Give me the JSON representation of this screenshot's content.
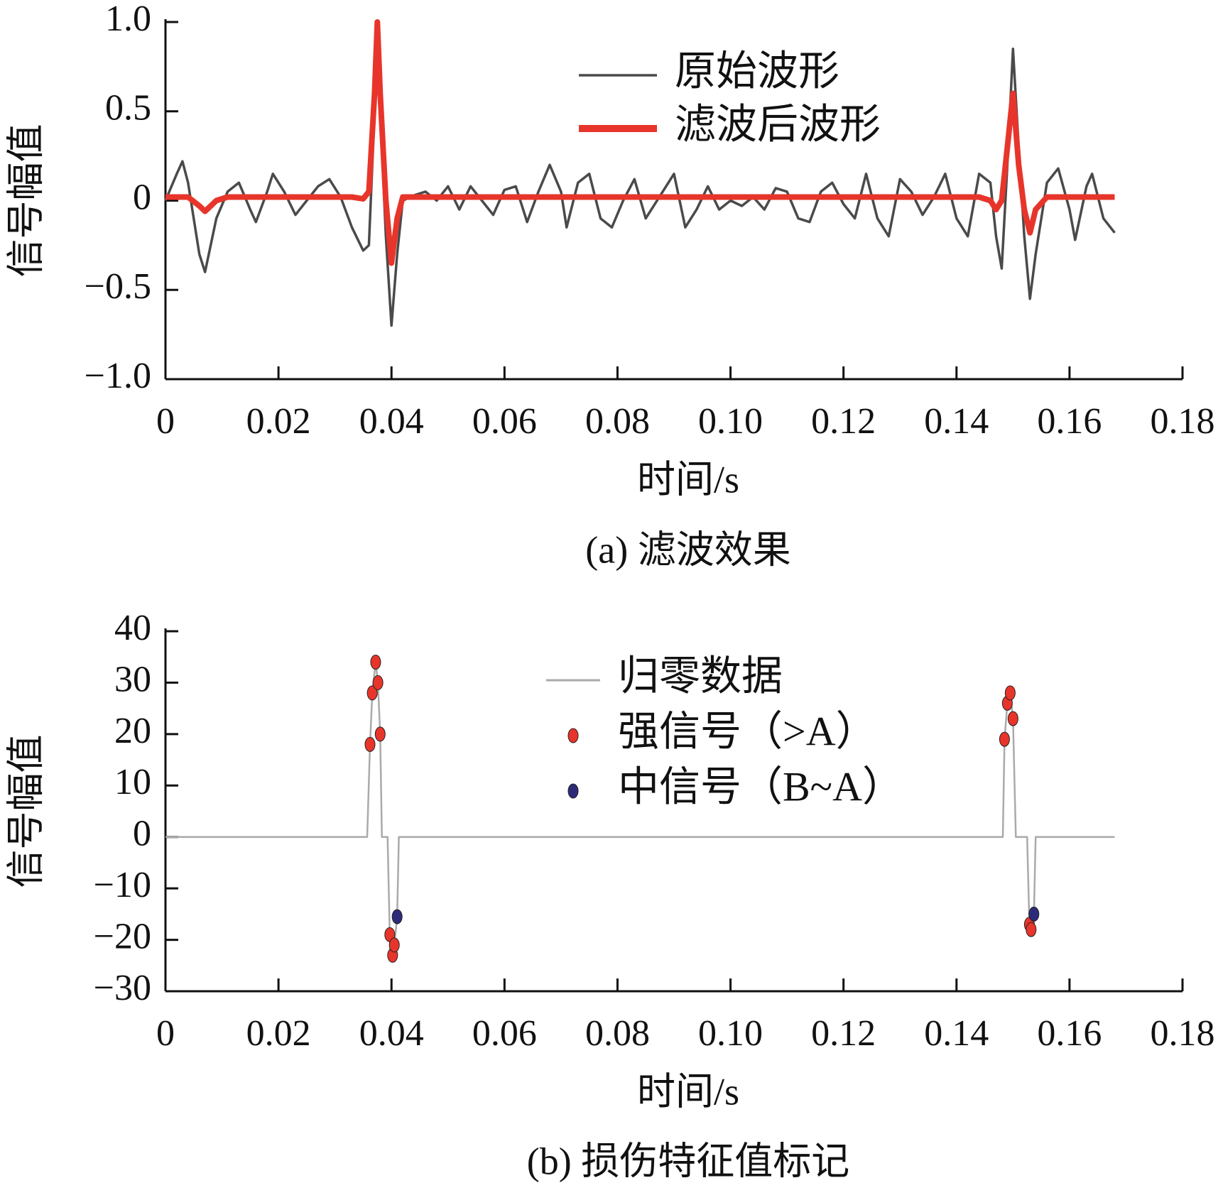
{
  "chart_data": [
    {
      "type": "line",
      "caption": "(a)  滤波效果",
      "xlabel": "时间/s",
      "ylabel": "信号幅值",
      "xlim": [
        0,
        0.18
      ],
      "ylim": [
        -1,
        1
      ],
      "xticks": [
        0,
        0.02,
        0.04,
        0.06,
        0.08,
        {
          "value": 0.1,
          "label": "0.10"
        },
        0.12,
        0.14,
        0.16,
        0.18
      ],
      "yticks": [
        {
          "value": 1,
          "label": "1.0"
        },
        0.5,
        0,
        {
          "value": -0.5,
          "label": "−0.5"
        },
        {
          "value": -1,
          "label": "−1.0"
        }
      ],
      "legend": "upper center",
      "x": [
        0,
        0.002,
        0.003,
        0.004,
        0.006,
        0.007,
        0.009,
        0.011,
        0.013,
        0.015,
        0.016,
        0.018,
        0.019,
        0.021,
        0.023,
        0.025,
        0.027,
        0.029,
        0.031,
        0.033,
        0.035,
        0.036,
        0.037,
        0.0375,
        0.038,
        0.039,
        0.04,
        0.041,
        0.042,
        0.044,
        0.046,
        0.048,
        0.05,
        0.052,
        0.054,
        0.056,
        0.058,
        0.06,
        0.062,
        0.064,
        0.066,
        0.068,
        0.07,
        0.071,
        0.073,
        0.075,
        0.077,
        0.079,
        0.081,
        0.083,
        0.085,
        0.088,
        0.09,
        0.092,
        0.094,
        0.096,
        0.098,
        0.1,
        0.102,
        0.104,
        0.106,
        0.108,
        0.11,
        0.112,
        0.114,
        0.116,
        0.118,
        0.12,
        0.122,
        0.124,
        0.126,
        0.128,
        0.13,
        0.132,
        0.134,
        0.136,
        0.138,
        0.14,
        0.142,
        0.144,
        0.146,
        0.147,
        0.148,
        0.149,
        0.15,
        0.151,
        0.152,
        0.153,
        0.154,
        0.156,
        0.158,
        0.16,
        0.161,
        0.163,
        0.164,
        0.166,
        0.168
      ],
      "series": [
        {
          "name": "原始波形",
          "color": "#4a4a4a",
          "type": "line",
          "values": [
            0,
            0.15,
            0.22,
            0.1,
            -0.3,
            -0.4,
            -0.1,
            0.05,
            0.1,
            -0.05,
            -0.12,
            0.05,
            0.15,
            0.05,
            -0.08,
            0,
            0.08,
            0.12,
            0.02,
            -0.15,
            -0.28,
            -0.25,
            0.5,
            1.0,
            0.5,
            -0.2,
            -0.7,
            -0.3,
            0,
            0.03,
            0.05,
            0,
            0.08,
            -0.05,
            0.08,
            0,
            -0.08,
            0.06,
            0.08,
            -0.12,
            0.05,
            0.2,
            0.05,
            -0.15,
            0.1,
            0.15,
            -0.1,
            -0.15,
            0,
            0.12,
            -0.1,
            0.05,
            0.15,
            -0.15,
            -0.05,
            0.08,
            -0.05,
            0,
            -0.03,
            0.02,
            -0.05,
            0.07,
            0.05,
            -0.1,
            -0.12,
            0.05,
            0.1,
            -0.02,
            -0.1,
            0.15,
            -0.1,
            -0.2,
            0.12,
            0.05,
            -0.08,
            0.02,
            0.15,
            -0.1,
            -0.2,
            0.15,
            0.1,
            -0.2,
            -0.38,
            0.2,
            0.85,
            0.3,
            -0.2,
            -0.55,
            -0.3,
            0.1,
            0.18,
            -0.05,
            -0.22,
            0.08,
            0.15,
            -0.1,
            -0.18
          ]
        },
        {
          "name": "滤波后波形",
          "color": "#e8352b",
          "type": "line",
          "values": [
            0.02,
            0.02,
            0.02,
            0.02,
            -0.03,
            -0.06,
            0,
            0.02,
            0.02,
            0.02,
            0.02,
            0.02,
            0.02,
            0.02,
            0.02,
            0.02,
            0.02,
            0.02,
            0.02,
            0.02,
            0.01,
            0.05,
            0.6,
            1.0,
            0.6,
            0,
            -0.35,
            -0.1,
            0.02,
            0.02,
            0.02,
            0.02,
            0.02,
            0.02,
            0.02,
            0.02,
            0.02,
            0.02,
            0.02,
            0.02,
            0.02,
            0.02,
            0.02,
            0.02,
            0.02,
            0.02,
            0.02,
            0.02,
            0.02,
            0.02,
            0.02,
            0.02,
            0.02,
            0.02,
            0.02,
            0.02,
            0.02,
            0.02,
            0.02,
            0.02,
            0.02,
            0.02,
            0.02,
            0.02,
            0.02,
            0.02,
            0.02,
            0.02,
            0.02,
            0.02,
            0.02,
            0.02,
            0.02,
            0.02,
            0.02,
            0.02,
            0.02,
            0.02,
            0.02,
            0.02,
            0,
            -0.05,
            0,
            0.3,
            0.6,
            0.2,
            -0.05,
            -0.18,
            -0.05,
            0.02,
            0.02,
            0.02,
            0.02,
            0.02,
            0.02,
            0.02,
            0.02
          ]
        }
      ]
    },
    {
      "type": "line",
      "caption": "(b)  损伤特征值标记",
      "xlabel": "时间/s",
      "ylabel": "信号幅值",
      "xlim": [
        0,
        0.18
      ],
      "ylim": [
        -30,
        40
      ],
      "xticks": [
        0,
        0.02,
        0.04,
        0.06,
        0.08,
        {
          "value": 0.1,
          "label": "0.10"
        },
        0.12,
        0.14,
        0.16,
        0.18
      ],
      "yticks": [
        40,
        30,
        20,
        10,
        0,
        {
          "value": -10,
          "label": "−10"
        },
        {
          "value": -20,
          "label": "−20"
        },
        {
          "value": -30,
          "label": "−30"
        }
      ],
      "legend": "upper center",
      "series": [
        {
          "name": "归零数据",
          "color": "#aaaaaa",
          "type": "line",
          "x": [
            0,
            0.0357,
            0.0362,
            0.0366,
            0.0372,
            0.0376,
            0.038,
            0.0383,
            0.039,
            0.0393,
            0.0397,
            0.0402,
            0.0405,
            0.041,
            0.0413,
            0.1482,
            0.1485,
            0.149,
            0.1495,
            0.15,
            0.1505,
            0.1525,
            0.1529,
            0.1532,
            0.1537,
            0.154,
            0.168
          ],
          "values": [
            0,
            0,
            18,
            28,
            34,
            30,
            20,
            0,
            0,
            0,
            -19,
            -23,
            -21,
            -15.5,
            0,
            0,
            19,
            26,
            28,
            23,
            0,
            0,
            -17,
            -18,
            -15,
            0,
            0
          ]
        },
        {
          "name": "强信号（>A）",
          "color": "#e8352b",
          "type": "scatter",
          "x": [
            0.0362,
            0.0366,
            0.0372,
            0.0376,
            0.038,
            0.0397,
            0.0402,
            0.0405,
            0.1485,
            0.149,
            0.1495,
            0.15,
            0.1529,
            0.1532
          ],
          "values": [
            18,
            28,
            34,
            30,
            20,
            -19,
            -23,
            -21,
            19,
            26,
            28,
            23,
            -17,
            -18
          ]
        },
        {
          "name": "中信号（B~A）",
          "color": "#2e2a7a",
          "type": "scatter",
          "x": [
            0.041,
            0.1537
          ],
          "values": [
            -15.5,
            -15
          ]
        }
      ]
    }
  ]
}
